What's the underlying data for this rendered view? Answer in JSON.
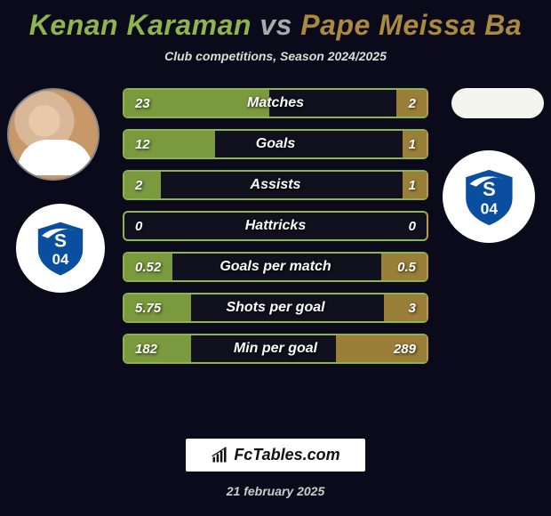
{
  "title": {
    "player1": "Kenan Karaman",
    "vs": "vs",
    "player2": "Pape Meissa Ba",
    "color1": "#8fb34f",
    "color2": "#aa8a40",
    "vs_color": "#aaaaaa"
  },
  "subtitle": "Club competitions, Season 2024/2025",
  "players": {
    "left_name": "Kenan Karaman",
    "right_name": "Pape Meissa Ba",
    "left_club": "Schalke 04",
    "right_club": "Schalke 04"
  },
  "schalke": {
    "blue": "#0a4ea0",
    "white": "#ffffff"
  },
  "stats": {
    "color_left_border": "#8fb34f",
    "color_left_fill": "#7a9a3d",
    "color_right_border": "#b89a4a",
    "color_right_fill": "#9a7f38",
    "rows": [
      {
        "label": "Matches",
        "left": "23",
        "right": "2",
        "left_pct": 48,
        "right_pct": 10
      },
      {
        "label": "Goals",
        "left": "12",
        "right": "1",
        "left_pct": 30,
        "right_pct": 8
      },
      {
        "label": "Assists",
        "left": "2",
        "right": "1",
        "left_pct": 12,
        "right_pct": 8
      },
      {
        "label": "Hattricks",
        "left": "0",
        "right": "0",
        "left_pct": 0,
        "right_pct": 0
      },
      {
        "label": "Goals per match",
        "left": "0.52",
        "right": "0.5",
        "left_pct": 16,
        "right_pct": 15
      },
      {
        "label": "Shots per goal",
        "left": "5.75",
        "right": "3",
        "left_pct": 22,
        "right_pct": 14
      },
      {
        "label": "Min per goal",
        "left": "182",
        "right": "289",
        "left_pct": 22,
        "right_pct": 30
      }
    ]
  },
  "branding": {
    "site": "FcTables.com",
    "date": "21 february 2025"
  }
}
